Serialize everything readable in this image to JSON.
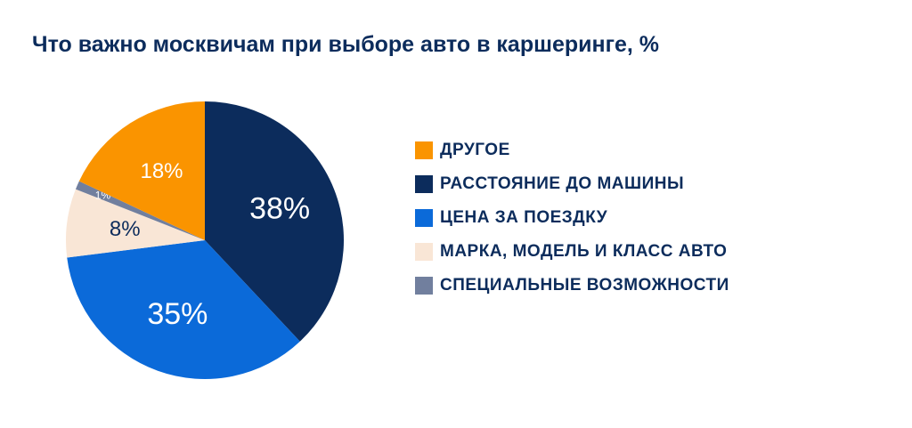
{
  "chart_data": {
    "type": "pie",
    "title": "Что важно москвичам при выборе авто в каршеринге, %",
    "slices": [
      {
        "name": "РАССТОЯНИЕ ДО МАШИНЫ",
        "value": 38,
        "label": "38%",
        "color": "#0c2c5c",
        "label_color": "#ffffff"
      },
      {
        "name": "ЦЕНА ЗА ПОЕЗДКУ",
        "value": 35,
        "label": "35%",
        "color": "#0b6ad9",
        "label_color": "#ffffff"
      },
      {
        "name": "МАРКА, МОДЕЛЬ И КЛАСС АВТО",
        "value": 8,
        "label": "8%",
        "color": "#f9e6d6",
        "label_color": "#0c2c5c"
      },
      {
        "name": "СПЕЦИАЛЬНЫЕ ВОЗМОЖНОСТИ",
        "value": 1,
        "label": "1%",
        "color": "#717f9e",
        "label_color": "#ffffff"
      },
      {
        "name": "ДРУГОЕ",
        "value": 18,
        "label": "18%",
        "color": "#fa9400",
        "label_color": "#ffffff"
      }
    ],
    "legend": [
      {
        "label": "ДРУГОЕ",
        "color": "#fa9400"
      },
      {
        "label": "РАССТОЯНИЕ ДО МАШИНЫ",
        "color": "#0c2c5c"
      },
      {
        "label": "ЦЕНА ЗА ПОЕЗДКУ",
        "color": "#0b6ad9"
      },
      {
        "label": "МАРКА, МОДЕЛЬ И КЛАСС АВТО",
        "color": "#f9e6d6"
      },
      {
        "label": "СПЕЦИАЛЬНЫЕ ВОЗМОЖНОСТИ",
        "color": "#717f9e"
      }
    ],
    "legend_position": "right"
  }
}
